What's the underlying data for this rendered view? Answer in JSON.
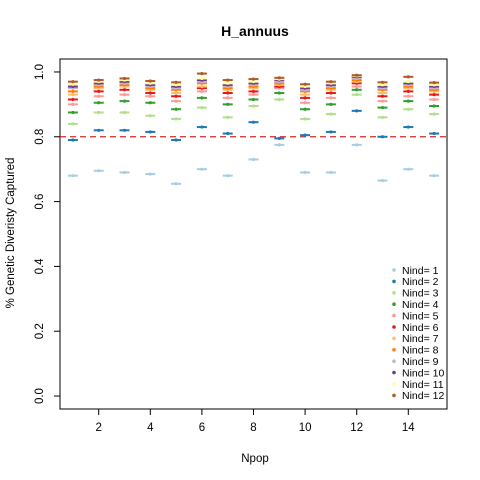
{
  "chart_data": {
    "type": "scatter",
    "title": "H_annuus",
    "xlabel": "Npop",
    "ylabel": "% Genetic Diveristy Captured",
    "xlim": [
      0.5,
      15.5
    ],
    "ylim": [
      -0.04,
      1.04
    ],
    "x_ticks": [
      2,
      4,
      6,
      8,
      10,
      12,
      14
    ],
    "x_tick_labels": [
      "2",
      "4",
      "6",
      "8",
      "10",
      "12",
      "14"
    ],
    "y_ticks": [
      0,
      0.2,
      0.4,
      0.6,
      0.8,
      1
    ],
    "y_tick_labels": [
      "0.0",
      "0.2",
      "0.4",
      "0.6",
      "0.8",
      "1.0"
    ],
    "reference_line": {
      "y": 0.8,
      "style": "dashed",
      "color": "#d62728"
    },
    "grid": false,
    "legend_position": "bottom-right",
    "x": [
      1,
      2,
      3,
      4,
      5,
      6,
      7,
      8,
      9,
      10,
      11,
      12,
      13,
      14,
      15
    ],
    "series": [
      {
        "name": "Nind= 1",
        "color": "#a6cee3",
        "values": [
          0.68,
          0.695,
          0.69,
          0.685,
          0.655,
          0.7,
          0.68,
          0.73,
          0.775,
          0.69,
          0.69,
          0.775,
          0.665,
          0.7,
          0.68
        ]
      },
      {
        "name": "Nind= 2",
        "color": "#1f78b4",
        "values": [
          0.79,
          0.82,
          0.82,
          0.815,
          0.79,
          0.83,
          0.81,
          0.845,
          0.795,
          0.805,
          0.815,
          0.88,
          0.8,
          0.83,
          0.81
        ]
      },
      {
        "name": "Nind= 3",
        "color": "#b2df8a",
        "values": [
          0.84,
          0.875,
          0.875,
          0.865,
          0.855,
          0.89,
          0.86,
          0.895,
          0.915,
          0.855,
          0.87,
          0.93,
          0.86,
          0.885,
          0.87
        ]
      },
      {
        "name": "Nind= 4",
        "color": "#33a02c",
        "values": [
          0.875,
          0.905,
          0.91,
          0.905,
          0.885,
          0.92,
          0.9,
          0.915,
          0.935,
          0.885,
          0.9,
          0.945,
          0.89,
          0.91,
          0.895
        ]
      },
      {
        "name": "Nind= 5",
        "color": "#fb9a99",
        "values": [
          0.9,
          0.925,
          0.93,
          0.925,
          0.91,
          0.94,
          0.92,
          0.93,
          0.95,
          0.905,
          0.92,
          0.955,
          0.91,
          0.925,
          0.915
        ]
      },
      {
        "name": "Nind= 6",
        "color": "#e31a1c",
        "values": [
          0.915,
          0.94,
          0.945,
          0.935,
          0.925,
          0.95,
          0.935,
          0.94,
          0.955,
          0.92,
          0.935,
          0.965,
          0.925,
          0.94,
          0.93
        ]
      },
      {
        "name": "Nind= 7",
        "color": "#fdbf6f",
        "values": [
          0.93,
          0.95,
          0.955,
          0.945,
          0.935,
          0.955,
          0.945,
          0.95,
          0.96,
          0.93,
          0.945,
          0.97,
          0.935,
          0.95,
          0.94
        ]
      },
      {
        "name": "Nind= 8",
        "color": "#ff7f00",
        "values": [
          0.94,
          0.955,
          0.96,
          0.95,
          0.945,
          0.965,
          0.95,
          0.955,
          0.965,
          0.94,
          0.95,
          0.975,
          0.945,
          0.955,
          0.945
        ]
      },
      {
        "name": "Nind= 9",
        "color": "#cab2d6",
        "values": [
          0.95,
          0.96,
          0.965,
          0.955,
          0.95,
          0.97,
          0.955,
          0.96,
          0.97,
          0.945,
          0.955,
          0.98,
          0.95,
          0.96,
          0.95
        ]
      },
      {
        "name": "Nind= 10",
        "color": "#6a3d9a",
        "values": [
          0.955,
          0.965,
          0.97,
          0.96,
          0.955,
          0.975,
          0.96,
          0.965,
          0.975,
          0.95,
          0.96,
          0.985,
          0.955,
          0.965,
          0.955
        ]
      },
      {
        "name": "Nind= 11",
        "color": "#ffff99",
        "values": [
          0.962,
          0.97,
          0.975,
          0.965,
          0.96,
          0.98,
          0.965,
          0.97,
          0.978,
          0.955,
          0.965,
          0.988,
          0.96,
          0.97,
          0.96
        ]
      },
      {
        "name": "Nind= 12",
        "color": "#b15928",
        "values": [
          0.97,
          0.975,
          0.98,
          0.972,
          0.968,
          0.995,
          0.975,
          0.978,
          0.982,
          0.962,
          0.97,
          0.99,
          0.968,
          0.985,
          0.967
        ]
      }
    ]
  }
}
